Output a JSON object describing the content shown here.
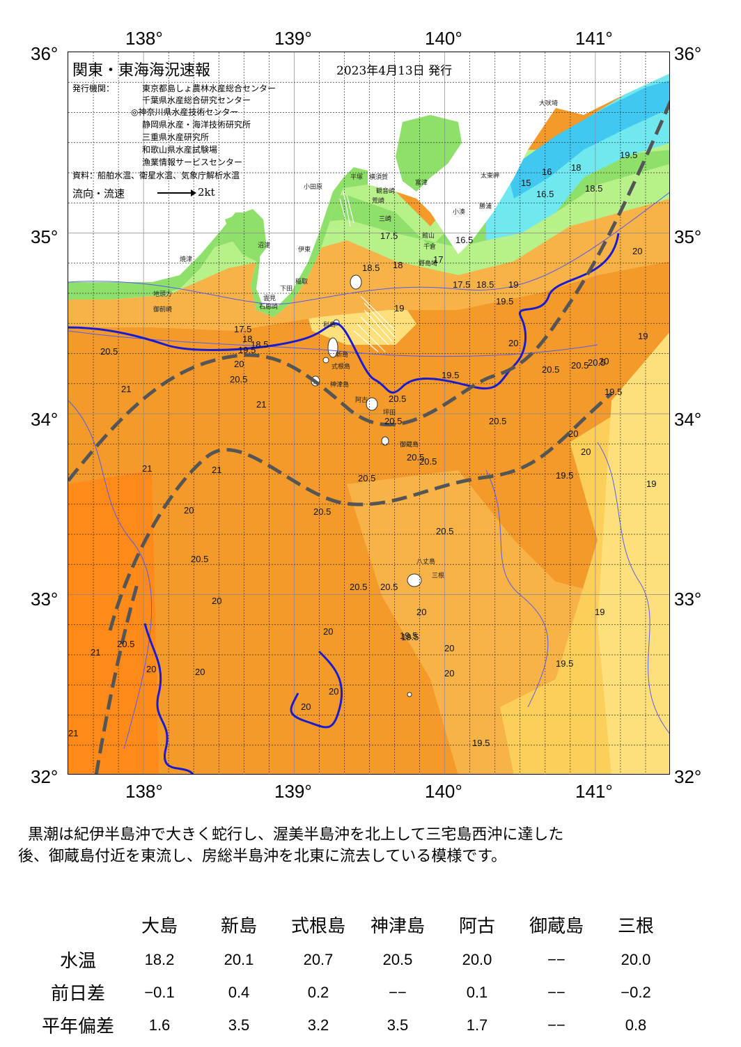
{
  "map": {
    "title": "関東・東海海況速報",
    "issue_date": "2023年4月13日 発行",
    "issuers_label": "発行機関：",
    "issuers": [
      "東京都島しょ農林水産総合センター",
      "千葉県水産総合研究センター",
      "◎神奈川県水産技術センター",
      "静岡県水産・海洋技術研究所",
      "三重県水産研究所",
      "和歌山県水産試験場",
      "漁業情報サービスセンター"
    ],
    "sources": "資料：船舶水温、衛星水温、気象庁解析水温",
    "flow_label": "流向・流速",
    "flow_scale": "2kt",
    "lon_labels": [
      "138°",
      "139°",
      "140°",
      "141°"
    ],
    "lat_labels": [
      "36°",
      "35°",
      "34°",
      "33°",
      "32°"
    ],
    "lon_range": [
      137.5,
      141.5
    ],
    "lat_range": [
      32,
      36
    ],
    "places": [
      "大吠埼",
      "太東岬",
      "勝浦",
      "小湊",
      "富津",
      "横須賀",
      "観音崎",
      "荒崎",
      "三崎",
      "館山",
      "千倉",
      "野島埼",
      "平塚",
      "小田原",
      "沼津",
      "伊東",
      "稲取",
      "下田",
      "雲見",
      "石廊崎",
      "焼津",
      "地頭方",
      "御前崎",
      "利島",
      "新島",
      "式根島",
      "神津島",
      "阿古",
      "坪田",
      "御蔵島",
      "八丈島",
      "三根"
    ],
    "contour_labels": [
      "19.5",
      "18",
      "16",
      "18.5",
      "15",
      "16.5",
      "17.5",
      "18.5",
      "18",
      "16.5",
      "17",
      "17.5",
      "18.5",
      "19",
      "19.5",
      "19",
      "20",
      "20.5",
      "17.5",
      "18",
      "18.5",
      "19.5",
      "20.5",
      "20",
      "21",
      "21",
      "20.5",
      "19.5",
      "20",
      "20.5",
      "20.5",
      "20.5",
      "20",
      "20.5",
      "20",
      "19.5",
      "20.5",
      "20.5",
      "20.5",
      "20.5",
      "20.5",
      "21",
      "20.5",
      "21",
      "20.5",
      "19.5",
      "20.5",
      "20.5",
      "20",
      "20",
      "20",
      "19.5",
      "20",
      "20",
      "19",
      "19.5",
      "19.5",
      "21",
      "20.5",
      "20",
      "20",
      "20",
      "20",
      "19.5",
      "21",
      "19",
      "20",
      "20",
      "19"
    ],
    "colors": {
      "land": "#ffffff",
      "sea_warm": "#f39a2a",
      "sea_warmest": "#ff8a1a",
      "sea_mid": "#f7b347",
      "sea_cool": "#fbcf5a",
      "sea_pale": "#fde07c",
      "coastal_green": "#8ee06a",
      "coastal_light": "#b8f08a",
      "cold_cyan": "#6fe8f0",
      "cold_blue": "#40c8f0",
      "kuroshio_20_isotherm": "#1a1ad0",
      "kuroshio_axis": "#555555"
    }
  },
  "summary": [
    "黒潮は紀伊半島沖で大きく蛇行し、渥美半島沖を北上して三宅島西沖に達した",
    "後、御蔵島付近を東流し、房総半島沖を北東に流去している模様です。"
  ],
  "observations": {
    "stations": [
      "大島",
      "新島",
      "式根島",
      "神津島",
      "阿古",
      "御蔵島",
      "三根"
    ],
    "rows": [
      {
        "label": "水温",
        "values": [
          "18.2",
          "20.1",
          "20.7",
          "20.5",
          "20.0",
          "−−",
          "20.0"
        ]
      },
      {
        "label": "前日差",
        "values": [
          "−0.1",
          "0.4",
          "0.2",
          "−−",
          "0.1",
          "−−",
          "−0.2"
        ]
      },
      {
        "label": "平年偏差",
        "values": [
          "1.6",
          "3.5",
          "3.2",
          "3.5",
          "1.7",
          "−−",
          "0.8"
        ]
      }
    ]
  }
}
